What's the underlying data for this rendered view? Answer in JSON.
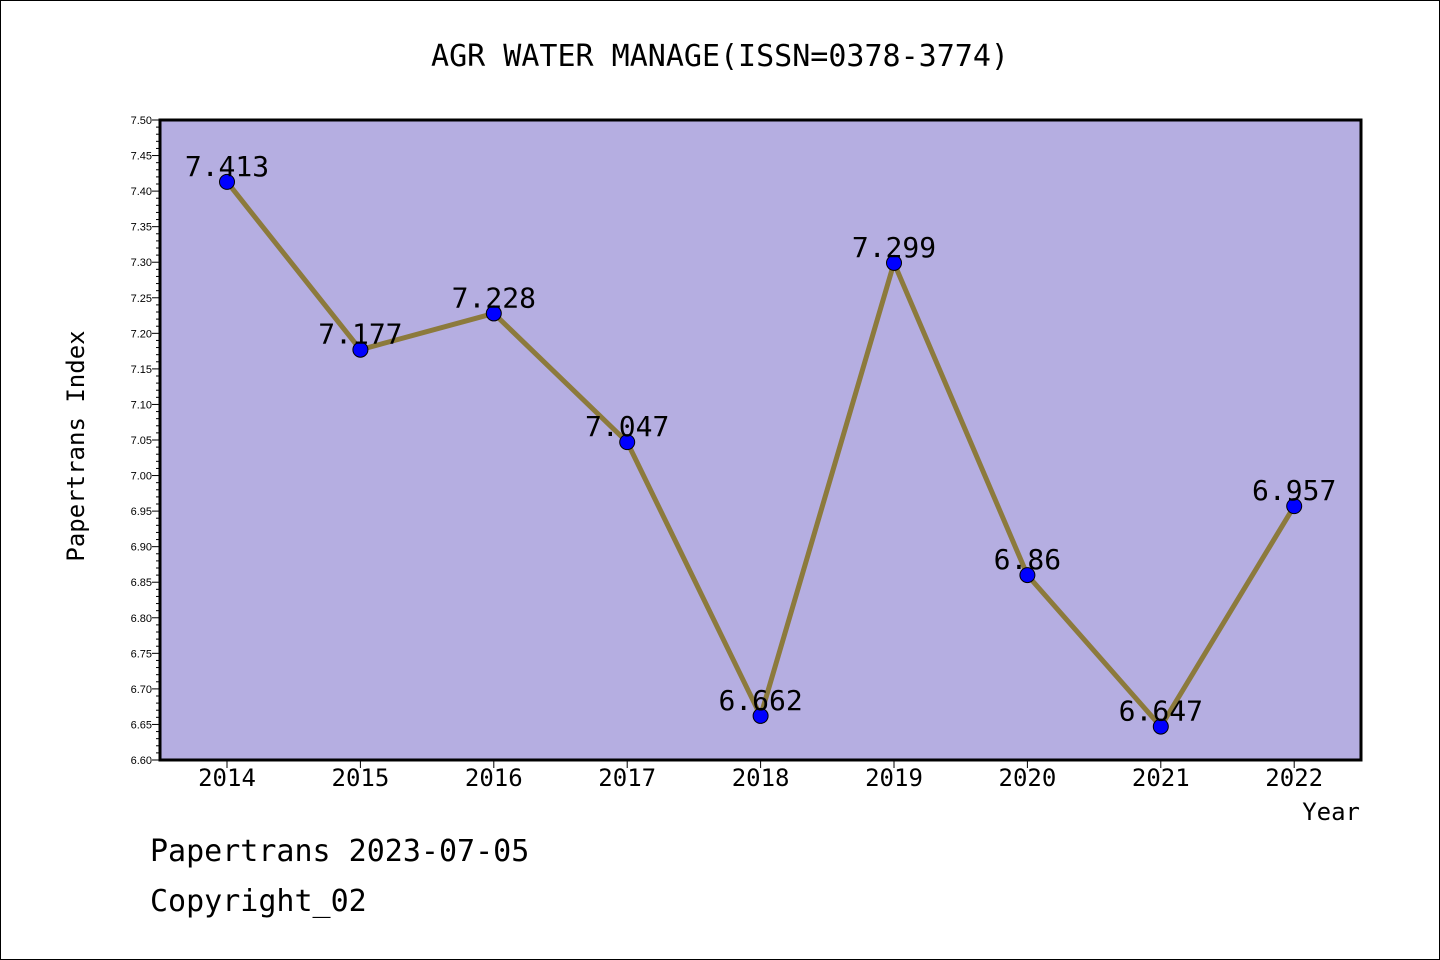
{
  "chart_data": {
    "type": "line",
    "title": "AGR WATER MANAGE(ISSN=0378-3774)",
    "xlabel": "Year",
    "ylabel": "Papertrans Index",
    "categories": [
      "2014",
      "2015",
      "2016",
      "2017",
      "2018",
      "2019",
      "2020",
      "2021",
      "2022"
    ],
    "values": [
      7.413,
      7.177,
      7.228,
      7.047,
      6.662,
      7.299,
      6.86,
      6.647,
      6.957
    ],
    "data_labels": [
      "7.413",
      "7.177",
      "7.228",
      "7.047",
      "6.662",
      "7.299",
      "6.86",
      "6.647",
      "6.957"
    ],
    "ylim": [
      6.6,
      7.5
    ],
    "yticks": [
      "6.60",
      "6.65",
      "6.70",
      "6.75",
      "6.80",
      "6.85",
      "6.90",
      "6.95",
      "7.00",
      "7.05",
      "7.10",
      "7.15",
      "7.20",
      "7.25",
      "7.30",
      "7.35",
      "7.40",
      "7.45",
      "7.50"
    ],
    "grid": false,
    "legend": "none",
    "colors": {
      "plot_background": "#b5aee1",
      "line": "#8c7a3c",
      "marker": "#0000ff"
    }
  },
  "footer": {
    "line1": "Papertrans 2023-07-05",
    "line2": "Copyright_02"
  }
}
